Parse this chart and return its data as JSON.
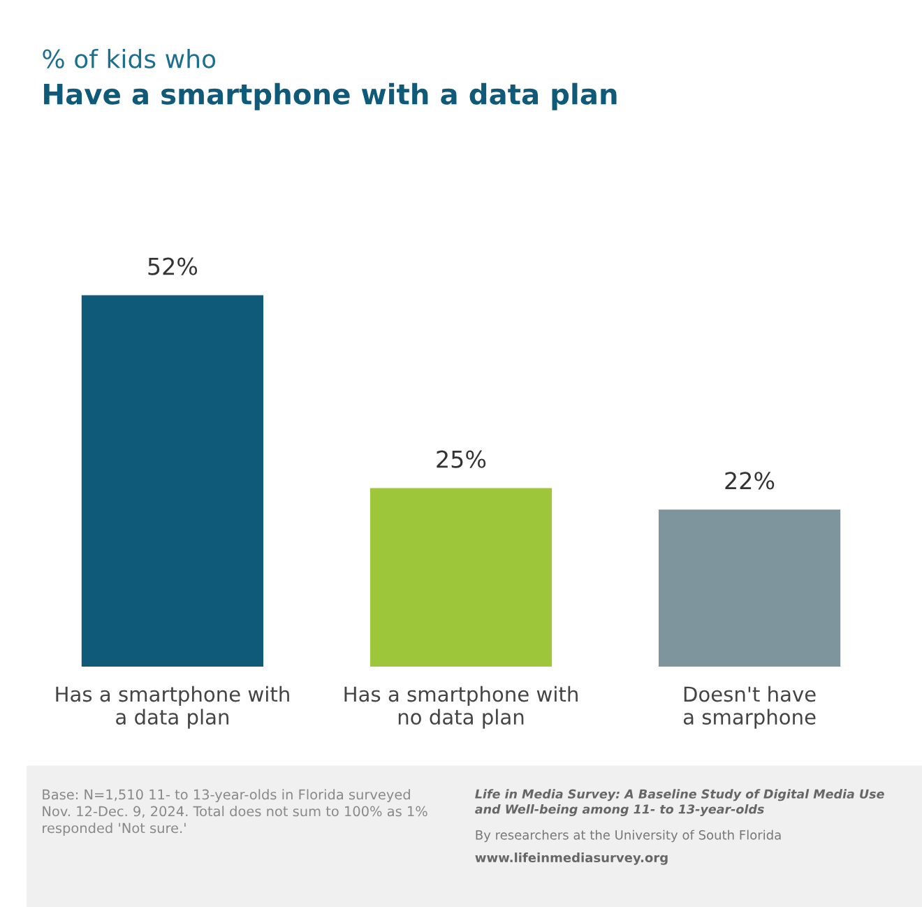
{
  "chart_data": {
    "type": "bar",
    "subtitle": "% of kids who",
    "title": "Have a smartphone with a data plan",
    "categories": [
      "Has a smartphone with\na data plan",
      "Has a smartphone with\nno data plan",
      "Doesn't have\na smarphone"
    ],
    "values": [
      52,
      25,
      22
    ],
    "colors": [
      "#0e5a78",
      "#9dc63b",
      "#7e959e"
    ],
    "value_labels": [
      "52%",
      "25%",
      "22%"
    ],
    "grid": false,
    "legend": false,
    "annotations": [
      "Base: N=1,510 11- to 13-year-olds in Florida surveyed\nNov. 12-Dec. 9, 2024. Total does not sum to 100% as 1%\nresponded 'Not sure.'",
      "Life in Media Survey: A Baseline Study of Digital Media Use\nand Well-being among 11- to 13-year-olds",
      "By researchers at the University of South Florida",
      "www.lifeinmediasurvey.org"
    ]
  }
}
